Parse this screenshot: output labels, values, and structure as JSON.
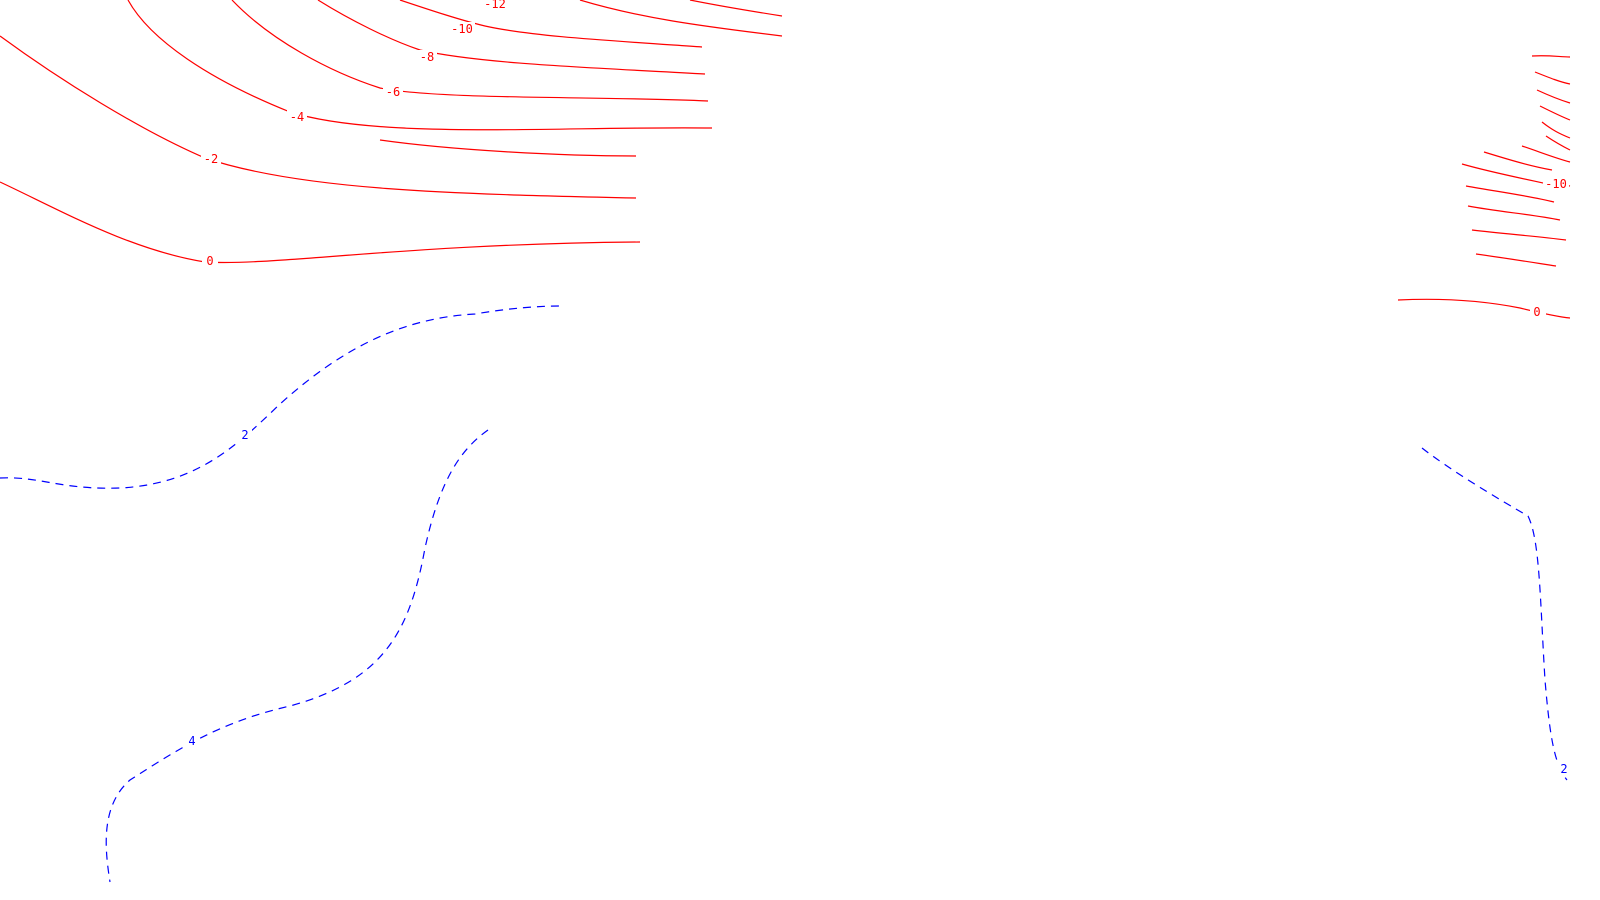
{
  "chart_data": {
    "type": "contour",
    "title": "",
    "xlabel": "",
    "ylabel": "",
    "grid": false,
    "colors": {
      "negative": "#ff0000",
      "positive": "#0000ff"
    },
    "line_styles": {
      "negative": "solid",
      "positive": "dashed"
    },
    "levels": [
      {
        "value": -12,
        "label": "-12",
        "sign": "negative"
      },
      {
        "value": -10,
        "label": "-10",
        "sign": "negative"
      },
      {
        "value": -8,
        "label": "-8",
        "sign": "negative"
      },
      {
        "value": -6,
        "label": "-6",
        "sign": "negative"
      },
      {
        "value": -4,
        "label": "-4",
        "sign": "negative"
      },
      {
        "value": -2,
        "label": "-2",
        "sign": "negative"
      },
      {
        "value": 0,
        "label": "0",
        "sign": "negative"
      },
      {
        "value": 2,
        "label": "2",
        "sign": "positive"
      },
      {
        "value": 4,
        "label": "4",
        "sign": "positive"
      }
    ]
  }
}
